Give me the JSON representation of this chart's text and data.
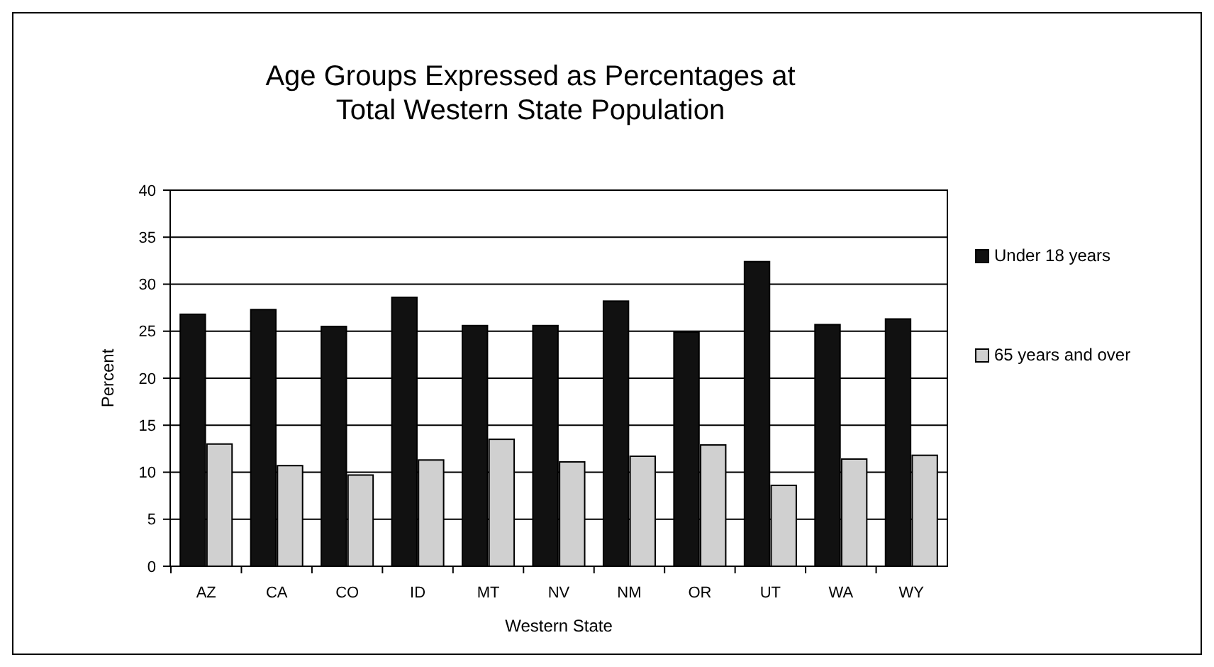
{
  "chart_data": {
    "type": "bar",
    "title": "Age Groups Expressed as Percentages at\nTotal Western State Population",
    "xlabel": "Western State",
    "ylabel": "Percent",
    "categories": [
      "AZ",
      "CA",
      "CO",
      "ID",
      "MT",
      "NV",
      "NM",
      "OR",
      "UT",
      "WA",
      "WY"
    ],
    "series": [
      {
        "name": "Under 18 years",
        "color": "#111111",
        "values": [
          26.8,
          27.3,
          25.5,
          28.6,
          25.6,
          25.6,
          28.2,
          24.9,
          32.4,
          25.7,
          26.3
        ]
      },
      {
        "name": "65 years and over",
        "color": "#d0d0d0",
        "values": [
          13.0,
          10.7,
          9.7,
          11.3,
          13.5,
          11.1,
          11.7,
          12.9,
          8.6,
          11.4,
          11.8
        ]
      }
    ],
    "ylim": [
      0,
      40
    ],
    "yticks": [
      0,
      5,
      10,
      15,
      20,
      25,
      30,
      35,
      40
    ],
    "grid": "y",
    "legend": "right"
  }
}
